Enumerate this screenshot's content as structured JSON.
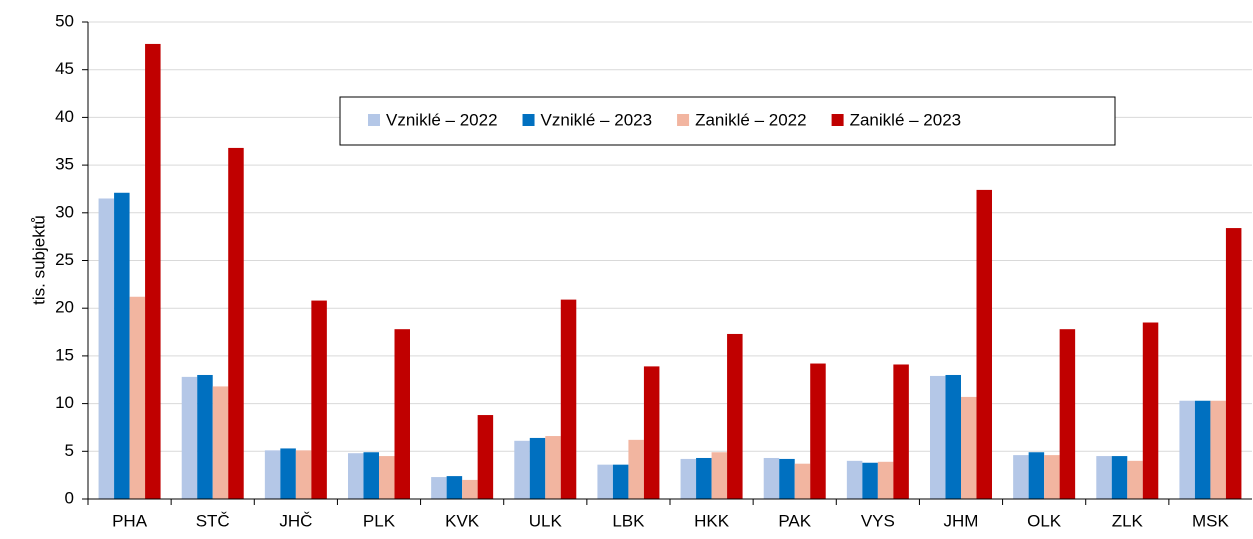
{
  "chart_data": {
    "type": "bar",
    "y_label": "tis. subjektů",
    "categories": [
      "PHA",
      "STČ",
      "JHČ",
      "PLK",
      "KVK",
      "ULK",
      "LBK",
      "HKK",
      "PAK",
      "VYS",
      "JHM",
      "OLK",
      "ZLK",
      "MSK"
    ],
    "series": [
      {
        "name": "Vzniklé – 2022",
        "color": "#b4c7e7",
        "values": [
          31.5,
          12.8,
          5.1,
          4.8,
          2.3,
          6.1,
          3.6,
          4.2,
          4.3,
          4.0,
          12.9,
          4.6,
          4.5,
          10.3
        ]
      },
      {
        "name": "Vzniklé – 2023",
        "color": "#0070c0",
        "values": [
          32.1,
          13.0,
          5.3,
          4.9,
          2.4,
          6.4,
          3.6,
          4.3,
          4.2,
          3.8,
          13.0,
          4.9,
          4.5,
          10.3
        ]
      },
      {
        "name": "Zaniklé – 2022",
        "color": "#f2b5a0",
        "values": [
          21.2,
          11.8,
          5.1,
          4.5,
          2.0,
          6.6,
          6.2,
          4.9,
          3.7,
          3.9,
          10.7,
          4.6,
          4.0,
          10.3
        ]
      },
      {
        "name": "Zaniklé – 2023",
        "color": "#c00000",
        "values": [
          47.7,
          36.8,
          20.8,
          17.8,
          8.8,
          20.9,
          13.9,
          17.3,
          14.2,
          14.1,
          32.4,
          17.8,
          18.5,
          28.4
        ]
      }
    ],
    "ylim": [
      0,
      50
    ],
    "yticks": [
      0,
      5,
      10,
      15,
      20,
      25,
      30,
      35,
      40,
      45,
      50
    ],
    "grid": true
  }
}
